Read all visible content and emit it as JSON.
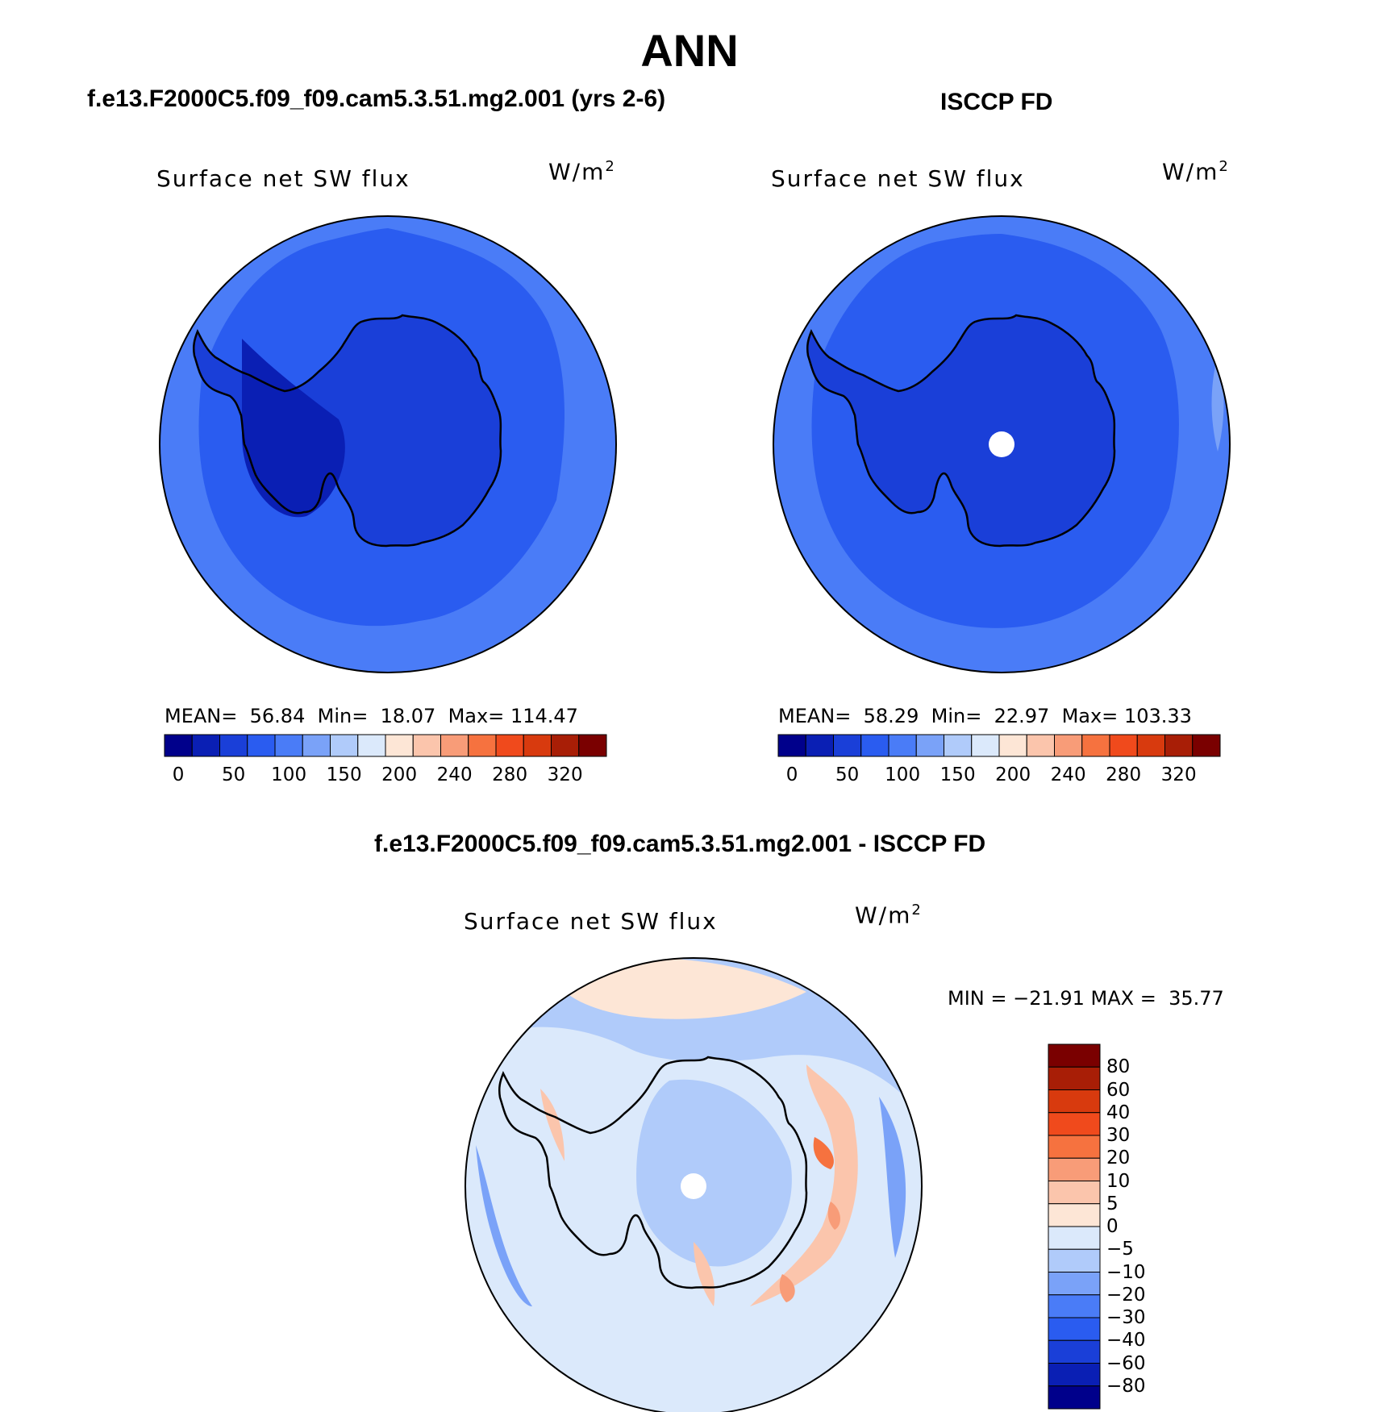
{
  "title": "ANN",
  "panels": {
    "model": {
      "title": "f.e13.F2000C5.f09_f09.cam5.3.51.mg2.001 (yrs 2-6)",
      "plot_label": "Surface net SW flux",
      "units": "W/m",
      "units_exp": "2",
      "mean_label": "MEAN=",
      "mean": "56.84",
      "min_label": "Min=",
      "min": "18.07",
      "max_label": "Max=",
      "max": "114.47"
    },
    "obs": {
      "title": "ISCCP FD",
      "plot_label": "Surface net SW flux",
      "units": "W/m",
      "units_exp": "2",
      "mean_label": "MEAN=",
      "mean": "58.29",
      "min_label": "Min=",
      "min": "22.97",
      "max_label": "Max=",
      "max": "103.33"
    },
    "diff": {
      "title": "f.e13.F2000C5.f09_f09.cam5.3.51.mg2.001 - ISCCP FD",
      "plot_label": "Surface net SW flux",
      "units": "W/m",
      "units_exp": "2",
      "minmax": "MIN = −21.91 MAX =  35.77"
    }
  },
  "colorbar_abs": {
    "colors": [
      "#00008b",
      "#0a1fb4",
      "#1a3fd8",
      "#2a5cf0",
      "#4a7cf7",
      "#7aa2f8",
      "#b0cbfa",
      "#dbe9fb",
      "#fde6d6",
      "#fbc5ac",
      "#f89c78",
      "#f6723f",
      "#f04a1c",
      "#d83a0e",
      "#a81e06",
      "#7a0000"
    ],
    "tick_labels": [
      "0",
      "50",
      "100",
      "150",
      "200",
      "240",
      "280",
      "320"
    ]
  },
  "colorbar_diff": {
    "colors": [
      "#7a0000",
      "#a81e06",
      "#d83a0e",
      "#f04a1c",
      "#f6723f",
      "#f89c78",
      "#fbc5ac",
      "#fde6d6",
      "#dbe9fb",
      "#b0cbfa",
      "#7aa2f8",
      "#4a7cf7",
      "#2a5cf0",
      "#1a3fd8",
      "#0a1fb4",
      "#00008b"
    ],
    "tick_labels": [
      "80",
      "60",
      "40",
      "30",
      "20",
      "10",
      "5",
      "0",
      "−5",
      "−10",
      "−20",
      "−30",
      "−40",
      "−60",
      "−80"
    ]
  }
}
